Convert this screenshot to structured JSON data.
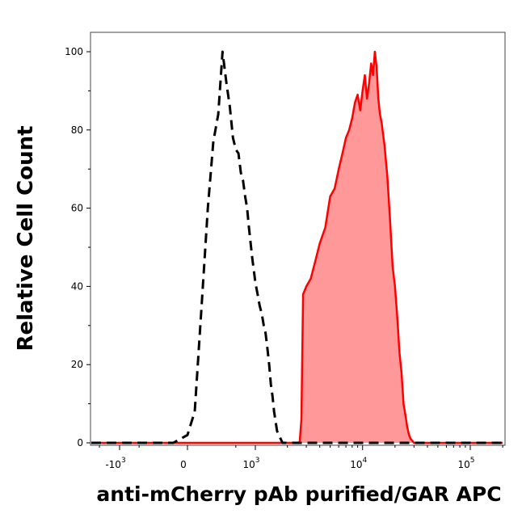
{
  "chart_data": {
    "type": "area",
    "xlabel": "anti-mCherry pAb purified/GAR APC",
    "ylabel": "Relative Cell Count",
    "x_scale": "biexponential",
    "ylim": [
      0,
      100
    ],
    "y_ticks": [
      {
        "value": 0,
        "label": "0"
      },
      {
        "value": 20,
        "label": "20"
      },
      {
        "value": 40,
        "label": "40"
      },
      {
        "value": 60,
        "label": "60"
      },
      {
        "value": 80,
        "label": "80"
      },
      {
        "value": 100,
        "label": "100"
      }
    ],
    "x_ticks": [
      {
        "value": -1000,
        "base": "-10",
        "exp": "3"
      },
      {
        "value": 0,
        "base": "0",
        "exp": ""
      },
      {
        "value": 1000,
        "base": "10",
        "exp": "3"
      },
      {
        "value": 10000,
        "base": "10",
        "exp": "4"
      },
      {
        "value": 100000,
        "base": "10",
        "exp": "5"
      }
    ],
    "series": [
      {
        "style": "dashed-outline",
        "color": "#000000",
        "x": [
          -3000,
          -1000,
          -300,
          -100,
          0,
          50,
          100,
          150,
          200,
          250,
          300,
          350,
          400,
          450,
          500,
          550,
          600,
          650,
          700,
          750,
          800,
          850,
          900,
          950,
          1000,
          1050,
          1100,
          1150,
          1200,
          1250,
          1300,
          1350,
          1400,
          1450,
          1500,
          1600,
          1800,
          2000,
          3000,
          10000,
          100000,
          200000
        ],
        "y": [
          0,
          0,
          0,
          0,
          2,
          8,
          35,
          60,
          77,
          84,
          100,
          92,
          86,
          78,
          75,
          74,
          69,
          67,
          63,
          60,
          55,
          51,
          47,
          44,
          41,
          38,
          35,
          33,
          30,
          28,
          24,
          20,
          15,
          12,
          8,
          3,
          0,
          0,
          0,
          0,
          0,
          0
        ]
      },
      {
        "style": "filled",
        "color": "#ff0000",
        "fill": "#ff9999",
        "x": [
          -3000,
          0,
          1000,
          2000,
          2600,
          2700,
          2800,
          3000,
          3300,
          3600,
          4000,
          4500,
          5000,
          5500,
          6000,
          6500,
          7000,
          7500,
          8000,
          8500,
          9000,
          9500,
          10000,
          10500,
          11000,
          11500,
          12000,
          12500,
          13000,
          13500,
          14000,
          14500,
          15000,
          16000,
          17000,
          18000,
          19000,
          20000,
          21000,
          22000,
          23000,
          24000,
          25000,
          26000,
          27000,
          28000,
          30000,
          32000,
          35000,
          40000,
          60000,
          100000,
          200000
        ],
        "y": [
          0,
          0,
          0,
          0,
          0,
          6,
          38,
          40,
          42,
          46,
          51,
          55,
          63,
          65,
          70,
          74,
          78,
          80,
          83,
          87,
          89,
          85,
          90,
          94,
          88,
          92,
          97,
          94,
          100,
          96,
          88,
          84,
          82,
          76,
          68,
          57,
          45,
          40,
          32,
          23,
          18,
          10,
          7,
          4,
          2,
          1,
          0,
          0,
          0,
          0,
          0,
          0,
          0
        ]
      }
    ]
  }
}
